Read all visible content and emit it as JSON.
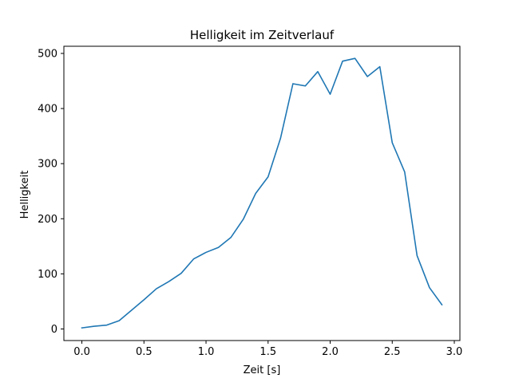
{
  "chart_data": {
    "type": "line",
    "title": "Helligkeit im Zeitverlauf",
    "xlabel": "Zeit [s]",
    "ylabel": "Helligkeit",
    "xlim": [
      -0.145,
      3.045
    ],
    "ylim": [
      -21,
      513
    ],
    "xticks": [
      0.0,
      0.5,
      1.0,
      1.5,
      2.0,
      2.5,
      3.0
    ],
    "xtick_labels": [
      "0.0",
      "0.5",
      "1.0",
      "1.5",
      "2.0",
      "2.5",
      "3.0"
    ],
    "yticks": [
      0,
      100,
      200,
      300,
      400,
      500
    ],
    "ytick_labels": [
      "0",
      "100",
      "200",
      "300",
      "400",
      "500"
    ],
    "grid": false,
    "color": "#1f77b4",
    "series": [
      {
        "x": [
          0.0,
          0.1,
          0.2,
          0.3,
          0.4,
          0.5,
          0.6,
          0.7,
          0.8,
          0.9,
          1.0,
          1.1,
          1.2,
          1.3,
          1.4,
          1.5,
          1.6,
          1.7,
          1.8,
          1.9,
          2.0,
          2.1,
          2.2,
          2.3,
          2.4,
          2.5,
          2.6,
          2.7,
          2.8,
          2.9
        ],
        "y": [
          2,
          5,
          7,
          15,
          34,
          53,
          73,
          86,
          101,
          127,
          139,
          148,
          166,
          199,
          246,
          276,
          346,
          445,
          441,
          467,
          426,
          486,
          491,
          458,
          476,
          338,
          285,
          133,
          75,
          44
        ]
      }
    ]
  }
}
